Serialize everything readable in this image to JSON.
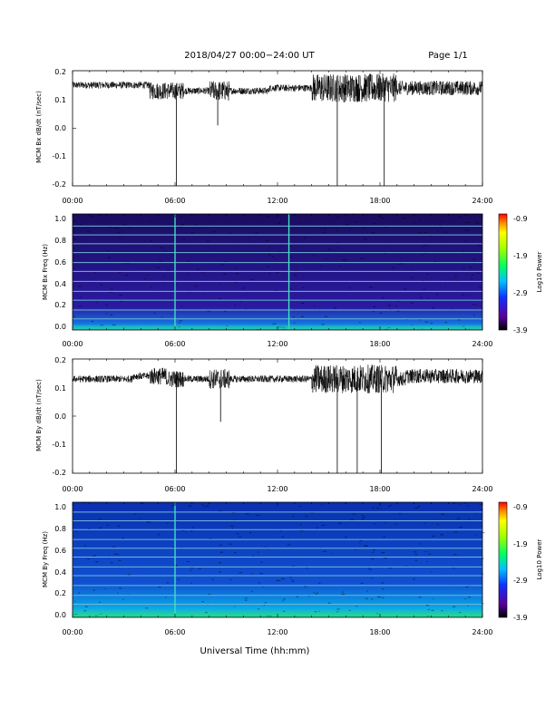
{
  "header": {
    "title": "2018/04/27  00:00−24:00 UT",
    "page": "Page 1/1"
  },
  "footer": {
    "xlabel": "Universal Time (hh:mm)"
  },
  "colorbar": {
    "label": "Log10 Power",
    "ticks": [
      "-0.9",
      "-1.9",
      "-2.9",
      "-3.9"
    ]
  },
  "chart_data": [
    {
      "type": "line",
      "ylabel": "MCM Bx dB/dt (nT/sec)",
      "xlim": [
        "00:00",
        "24:00"
      ],
      "ylim": [
        -0.2,
        0.2
      ],
      "x_ticks": [
        "00:00",
        "06:00",
        "12:00",
        "18:00",
        "24:00"
      ],
      "y_ticks": [
        "0.2",
        "0.1",
        "0.0",
        "-0.1",
        "-0.2"
      ],
      "baseline_by_hour": [
        0.15,
        0.15,
        0.15,
        0.15,
        0.15,
        0.13,
        0.13,
        0.13,
        0.13,
        0.13,
        0.13,
        0.13,
        0.14,
        0.14,
        0.14,
        0.14,
        0.14,
        0.14,
        0.14,
        0.14,
        0.14,
        0.14,
        0.14,
        0.14,
        0.14
      ],
      "spikes": [
        {
          "time": "06:05",
          "min": -0.2
        },
        {
          "time": "08:30",
          "min": 0.01
        },
        {
          "time": "15:30",
          "min": -0.2
        },
        {
          "time": "18:15",
          "min": -0.2
        }
      ]
    },
    {
      "type": "heatmap",
      "ylabel": "MCM Bx Freq (Hz)",
      "xlim": [
        "00:00",
        "24:00"
      ],
      "ylim": [
        0.0,
        1.0
      ],
      "x_ticks": [
        "00:00",
        "06:00",
        "12:00",
        "18:00",
        "24:00"
      ],
      "y_ticks": [
        "1.0",
        "0.8",
        "0.6",
        "0.4",
        "0.2",
        "0.0"
      ],
      "zlim": [
        -3.9,
        -0.9
      ],
      "harmonic_lines_hz": [
        0.94,
        0.86,
        0.78,
        0.7,
        0.61,
        0.53,
        0.44,
        0.35,
        0.27,
        0.18,
        0.1
      ],
      "vertical_lines": [
        "06:00",
        "12:40"
      ]
    },
    {
      "type": "line",
      "ylabel": "MCM By dB/dt (nT/sec)",
      "xlim": [
        "00:00",
        "24:00"
      ],
      "ylim": [
        -0.2,
        0.2
      ],
      "x_ticks": [
        "00:00",
        "06:00",
        "12:00",
        "18:00",
        "24:00"
      ],
      "y_ticks": [
        "0.2",
        "0.1",
        "0.0",
        "-0.1",
        "-0.2"
      ],
      "baseline_by_hour": [
        0.13,
        0.13,
        0.13,
        0.13,
        0.14,
        0.14,
        0.13,
        0.13,
        0.13,
        0.13,
        0.13,
        0.13,
        0.13,
        0.13,
        0.13,
        0.13,
        0.13,
        0.13,
        0.13,
        0.13,
        0.14,
        0.14,
        0.14,
        0.14,
        0.14
      ],
      "spikes": [
        {
          "time": "06:05",
          "min": -0.2
        },
        {
          "time": "08:40",
          "min": -0.02
        },
        {
          "time": "15:30",
          "min": -0.2
        },
        {
          "time": "16:40",
          "min": -0.2
        },
        {
          "time": "18:05",
          "min": -0.2
        }
      ]
    },
    {
      "type": "heatmap",
      "ylabel": "MCM By Freq (Hz)",
      "xlim": [
        "00:00",
        "24:00"
      ],
      "ylim": [
        0.0,
        1.0
      ],
      "x_ticks": [
        "00:00",
        "06:00",
        "12:00",
        "18:00",
        "24:00"
      ],
      "y_ticks": [
        "1.0",
        "0.8",
        "0.6",
        "0.4",
        "0.2",
        "0.0"
      ],
      "zlim": [
        -3.9,
        -0.9
      ],
      "harmonic_lines_hz": [
        0.96,
        0.88,
        0.8,
        0.71,
        0.63,
        0.55,
        0.46,
        0.38,
        0.29,
        0.2,
        0.12
      ],
      "vertical_lines": [
        "06:00"
      ]
    }
  ]
}
